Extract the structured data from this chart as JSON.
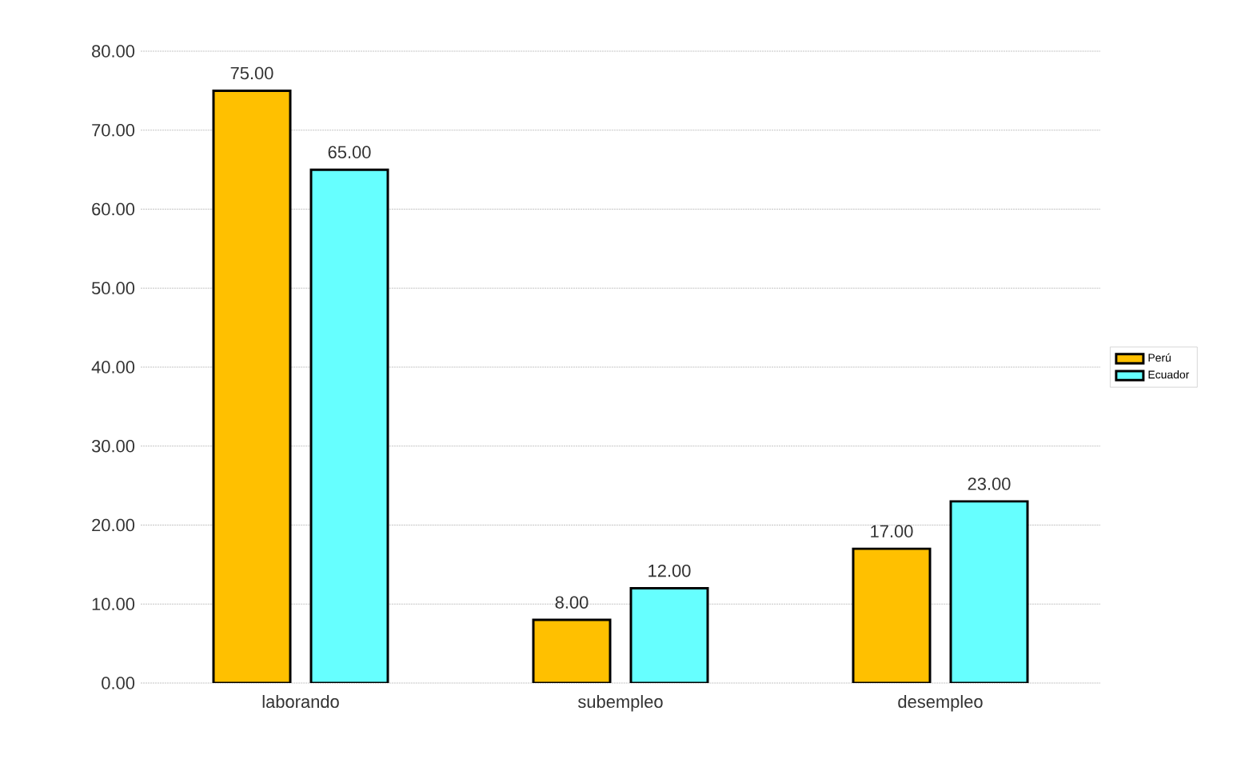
{
  "chart_data": {
    "type": "bar",
    "categories": [
      "laborando",
      "subempleo",
      "desempleo"
    ],
    "series": [
      {
        "name": "Perú",
        "color": "#ffc000",
        "values": [
          75,
          8,
          17
        ],
        "value_labels": [
          "75.00",
          "8.00",
          "17.00"
        ]
      },
      {
        "name": "Ecuador",
        "color": "#66ffff",
        "values": [
          65,
          12,
          23
        ],
        "value_labels": [
          "65.00",
          "12.00",
          "23.00"
        ]
      }
    ],
    "ylim": [
      0,
      80
    ],
    "yticks": [
      {
        "value": 0,
        "label": "0.00"
      },
      {
        "value": 10,
        "label": "10.00"
      },
      {
        "value": 20,
        "label": "20.00"
      },
      {
        "value": 30,
        "label": "30.00"
      },
      {
        "value": 40,
        "label": "40.00"
      },
      {
        "value": 50,
        "label": "50.00"
      },
      {
        "value": 60,
        "label": "60.00"
      },
      {
        "value": 70,
        "label": "70.00"
      },
      {
        "value": 80,
        "label": "80.00"
      }
    ],
    "grid": "y",
    "legend": "right"
  }
}
